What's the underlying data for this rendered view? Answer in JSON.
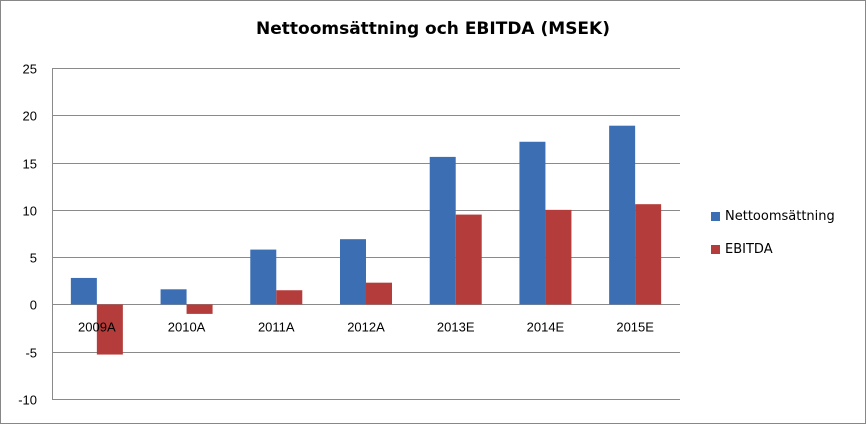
{
  "chart_data": {
    "type": "bar",
    "title": "Nettoomsättning och EBITDA (MSEK)",
    "categories": [
      "2009A",
      "2010A",
      "2011A",
      "2012A",
      "2013E",
      "2014E",
      "2015E"
    ],
    "series": [
      {
        "name": "Nettoomsättning",
        "color": "#3C6EB4",
        "values": [
          2.8,
          1.6,
          5.8,
          6.9,
          15.6,
          17.2,
          18.9
        ]
      },
      {
        "name": "EBITDA",
        "color": "#B43C3A",
        "values": [
          -5.3,
          -1.0,
          1.5,
          2.3,
          9.5,
          10.0,
          10.6
        ]
      }
    ],
    "ylim": [
      -10,
      25
    ],
    "yticks": [
      -10,
      -5,
      0,
      5,
      10,
      15,
      20,
      25
    ],
    "xlabel": "",
    "ylabel": "",
    "grid": true,
    "legend": "right"
  }
}
